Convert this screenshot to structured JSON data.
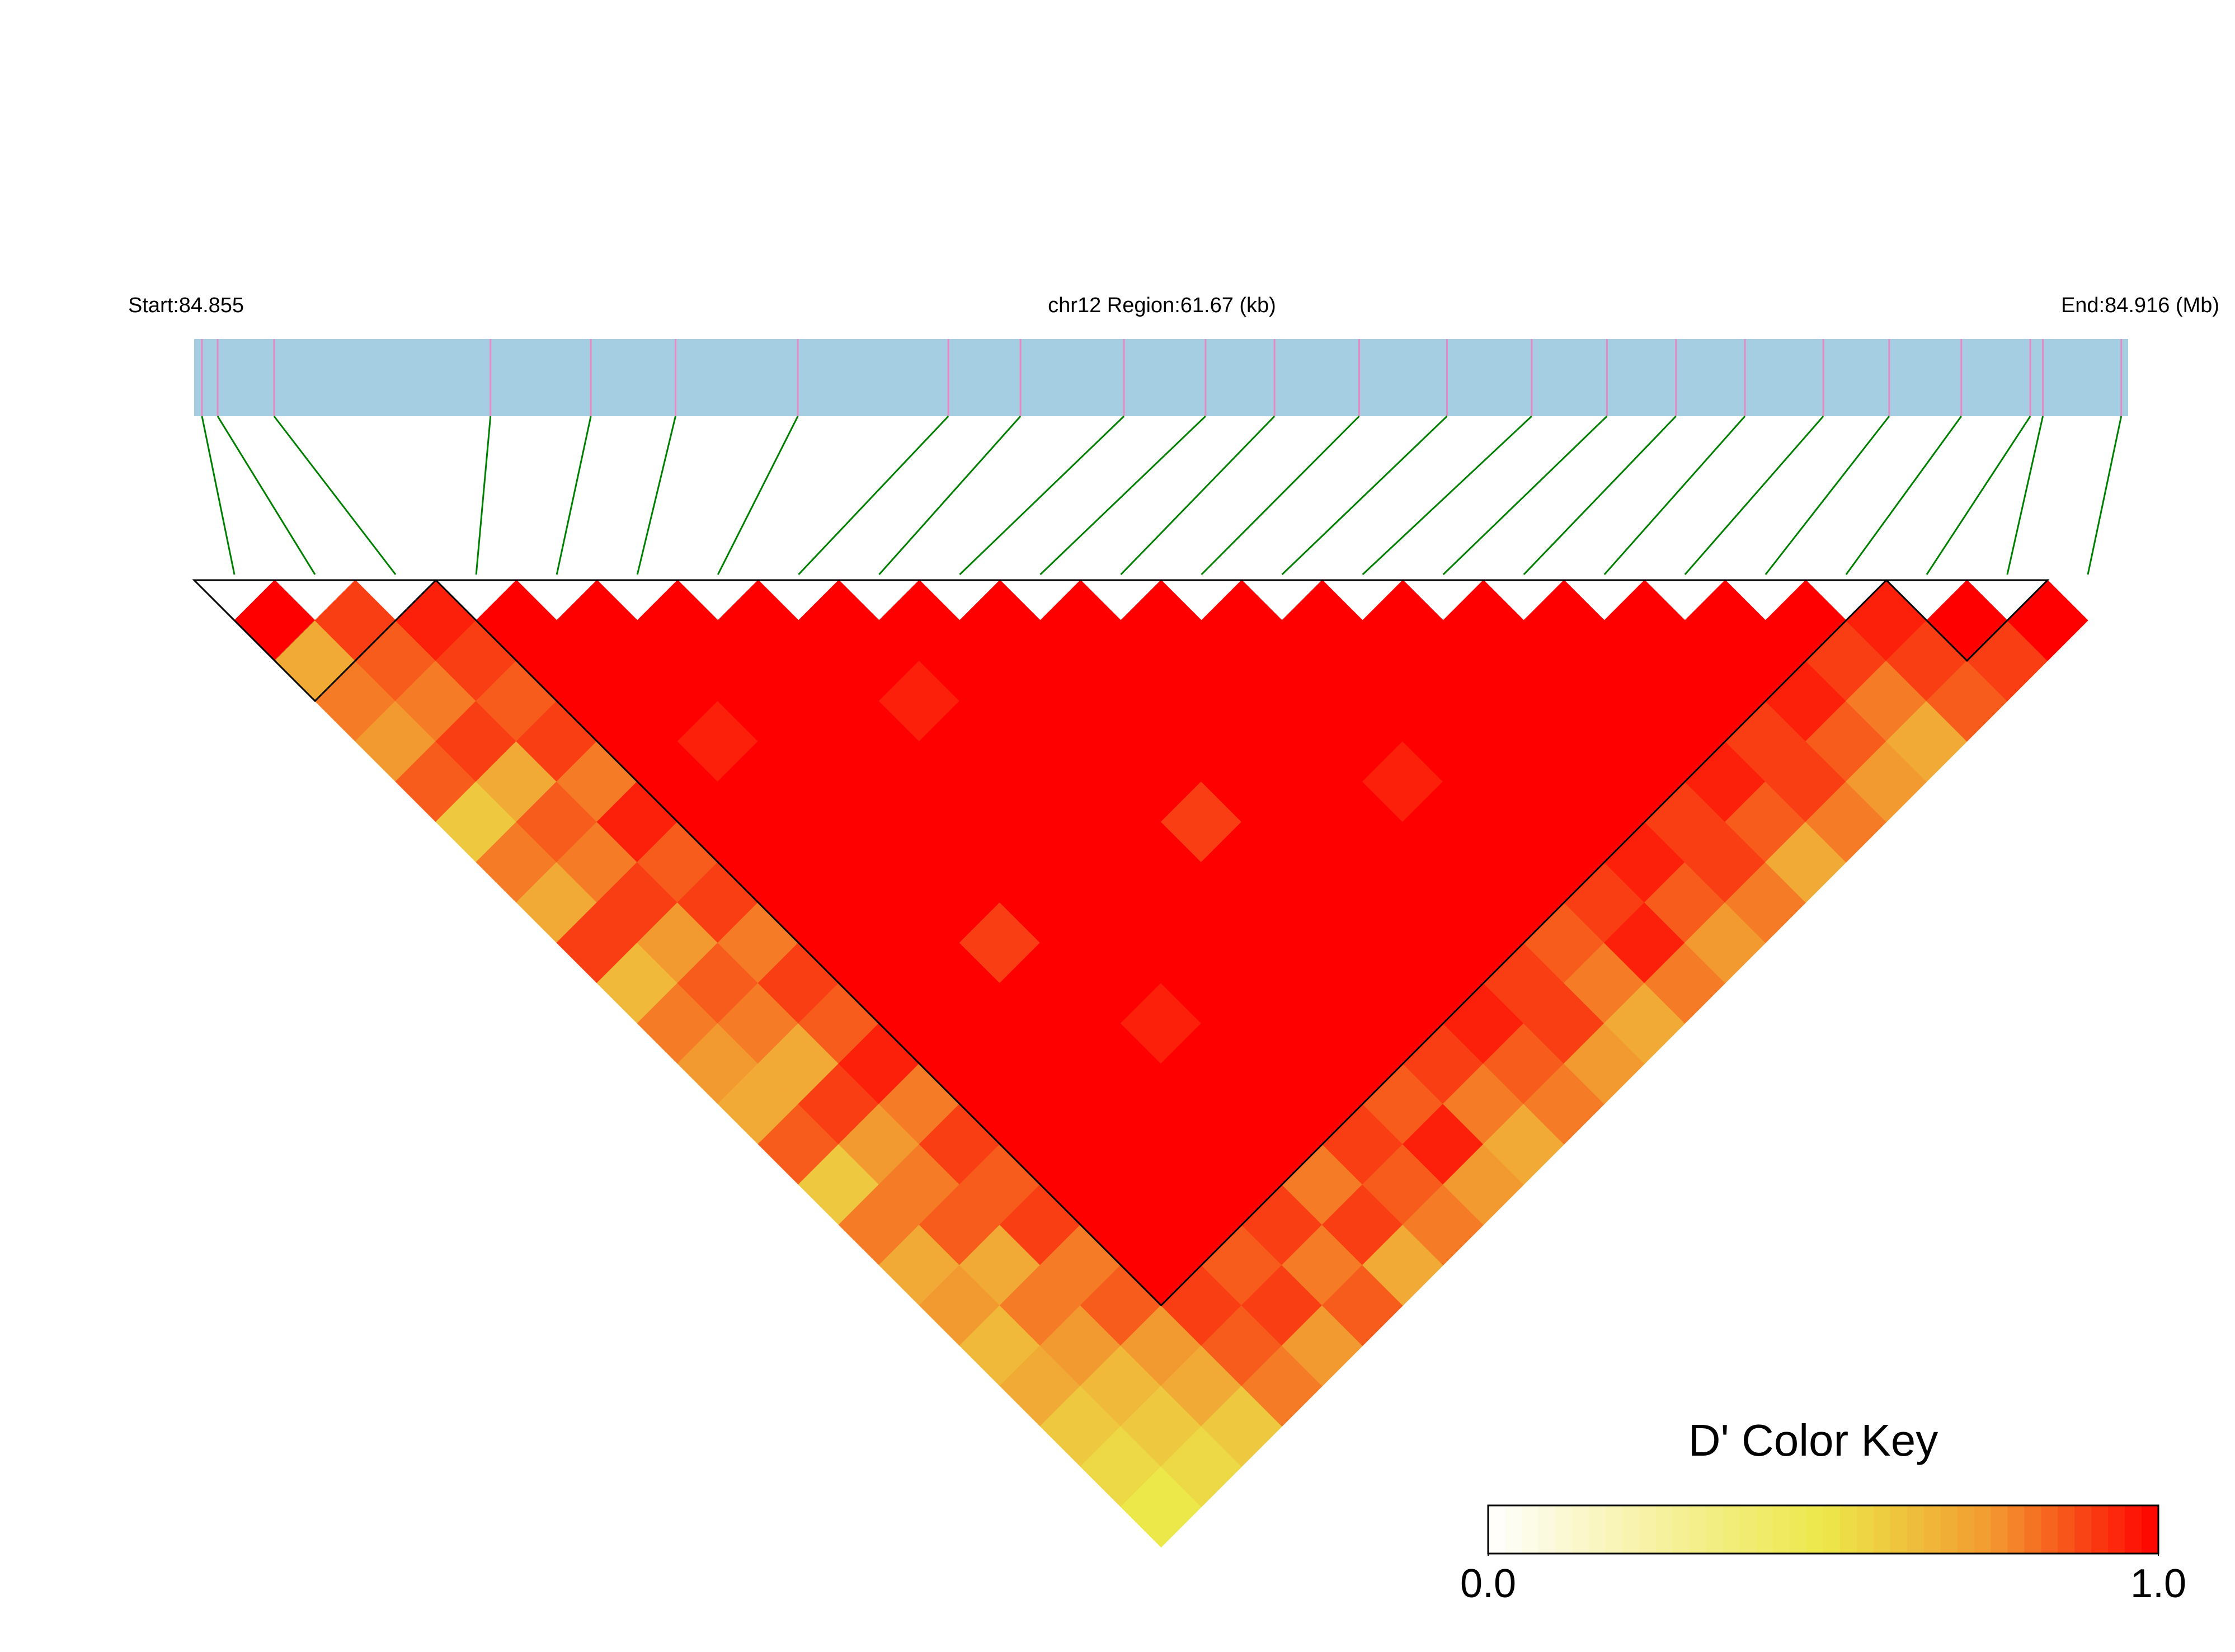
{
  "chart_data": {
    "type": "ld_heatmap",
    "title": "chr12 Region:61.67 (kb)",
    "start_label": "Start:84.855",
    "end_label": "End:84.916 (Mb)",
    "xlim": [
      84.85485,
      84.91652
    ],
    "snp_positions": [
      84.8551,
      84.8556,
      84.8574,
      84.8643,
      84.8675,
      84.8702,
      84.8741,
      84.8789,
      84.8812,
      84.8845,
      84.8871,
      84.8893,
      84.892,
      84.8948,
      84.8975,
      84.8999,
      84.9021,
      84.9043,
      84.9068,
      84.9089,
      84.9112,
      84.9134,
      84.9138,
      84.9163
    ],
    "dprime": [
      [
        1,
        0.7,
        0.8,
        0.75,
        0.85,
        0.6,
        0.8,
        0.7,
        0.9,
        0.65,
        0.8,
        0.75,
        0.7,
        0.85,
        0.6,
        0.8,
        0.7,
        0.75,
        0.65,
        0.7,
        0.6,
        0.55,
        0.5
      ],
      [
        0.9,
        0.85,
        0.8,
        0.9,
        0.7,
        0.85,
        0.8,
        0.9,
        0.75,
        0.85,
        0.8,
        0.7,
        0.9,
        0.75,
        0.8,
        0.85,
        0.7,
        0.8,
        0.75,
        0.65,
        0.6,
        0.55
      ],
      [
        0.95,
        0.9,
        0.85,
        0.9,
        0.8,
        0.95,
        0.85,
        0.9,
        0.8,
        0.9,
        0.85,
        0.95,
        0.8,
        0.9,
        0.85,
        0.9,
        0.8,
        0.85,
        0.75,
        0.7,
        0.6
      ],
      [
        1,
        1,
        1,
        1,
        1,
        1,
        1,
        1,
        1,
        1,
        1,
        1,
        1,
        1,
        1,
        1,
        1,
        0.9,
        0.85,
        0.8
      ],
      [
        1,
        1,
        1,
        0.95,
        1,
        1,
        1,
        1,
        1,
        1,
        1,
        1,
        1,
        1,
        1,
        1,
        0.85,
        0.9,
        0.75
      ],
      [
        1,
        1,
        1,
        1,
        1,
        1,
        1,
        1,
        0.9,
        1,
        1,
        1,
        1,
        1,
        1,
        0.9,
        0.8,
        0.85
      ],
      [
        1,
        1,
        1,
        1,
        1,
        1,
        1,
        1,
        1,
        1,
        0.95,
        1,
        1,
        1,
        0.8,
        0.9,
        0.7
      ],
      [
        1,
        1,
        0.95,
        1,
        1,
        1,
        1,
        1,
        1,
        1,
        1,
        1,
        1,
        0.9,
        0.85,
        0.8
      ],
      [
        1,
        1,
        1,
        1,
        1,
        1,
        1,
        1,
        1,
        1,
        1,
        1,
        0.85,
        0.95,
        0.75
      ],
      [
        1,
        1,
        1,
        1,
        1,
        0.9,
        1,
        1,
        1,
        1,
        1,
        0.9,
        0.8,
        0.7
      ],
      [
        1,
        1,
        1,
        1,
        1,
        1,
        1,
        1,
        1,
        1,
        0.95,
        0.85,
        0.8
      ],
      [
        1,
        1,
        1,
        1,
        1,
        1,
        1,
        1,
        1,
        0.9,
        0.9,
        0.75
      ],
      [
        1,
        1,
        1,
        1,
        0.95,
        1,
        1,
        1,
        0.85,
        0.8,
        0.7
      ],
      [
        1,
        1,
        1,
        1,
        1,
        1,
        1,
        0.9,
        0.95,
        0.8
      ],
      [
        1,
        1,
        1,
        1,
        1,
        1,
        0.95,
        0.85,
        0.75
      ],
      [
        1,
        1,
        1,
        1,
        1,
        0.9,
        0.9,
        0.8
      ],
      [
        1,
        1,
        1,
        1,
        0.95,
        0.85,
        0.7
      ],
      [
        1,
        1,
        1,
        0.9,
        0.9,
        0.8
      ],
      [
        1,
        1,
        0.95,
        0.85,
        0.75
      ],
      [
        1,
        0.9,
        0.8,
        0.7
      ],
      [
        0.95,
        0.9,
        0.85
      ],
      [
        1,
        0.9
      ],
      [
        1
      ]
    ],
    "blocks": [
      [
        0,
        2
      ],
      [
        3,
        20
      ],
      [
        21,
        22
      ]
    ],
    "bar_color": "#a6cee3",
    "snp_tick_color": "#e78ac3",
    "map_line_color": "#008000",
    "colormap": [
      "#ffffff",
      "#f7f1a0",
      "#ece84a",
      "#f29a30",
      "#ff0000"
    ],
    "color_key": {
      "title": "D' Color Key",
      "lim": [
        0,
        1
      ],
      "ticks": [
        {
          "value": 0,
          "label": "0.0"
        },
        {
          "value": 1,
          "label": "1.0"
        }
      ]
    }
  }
}
